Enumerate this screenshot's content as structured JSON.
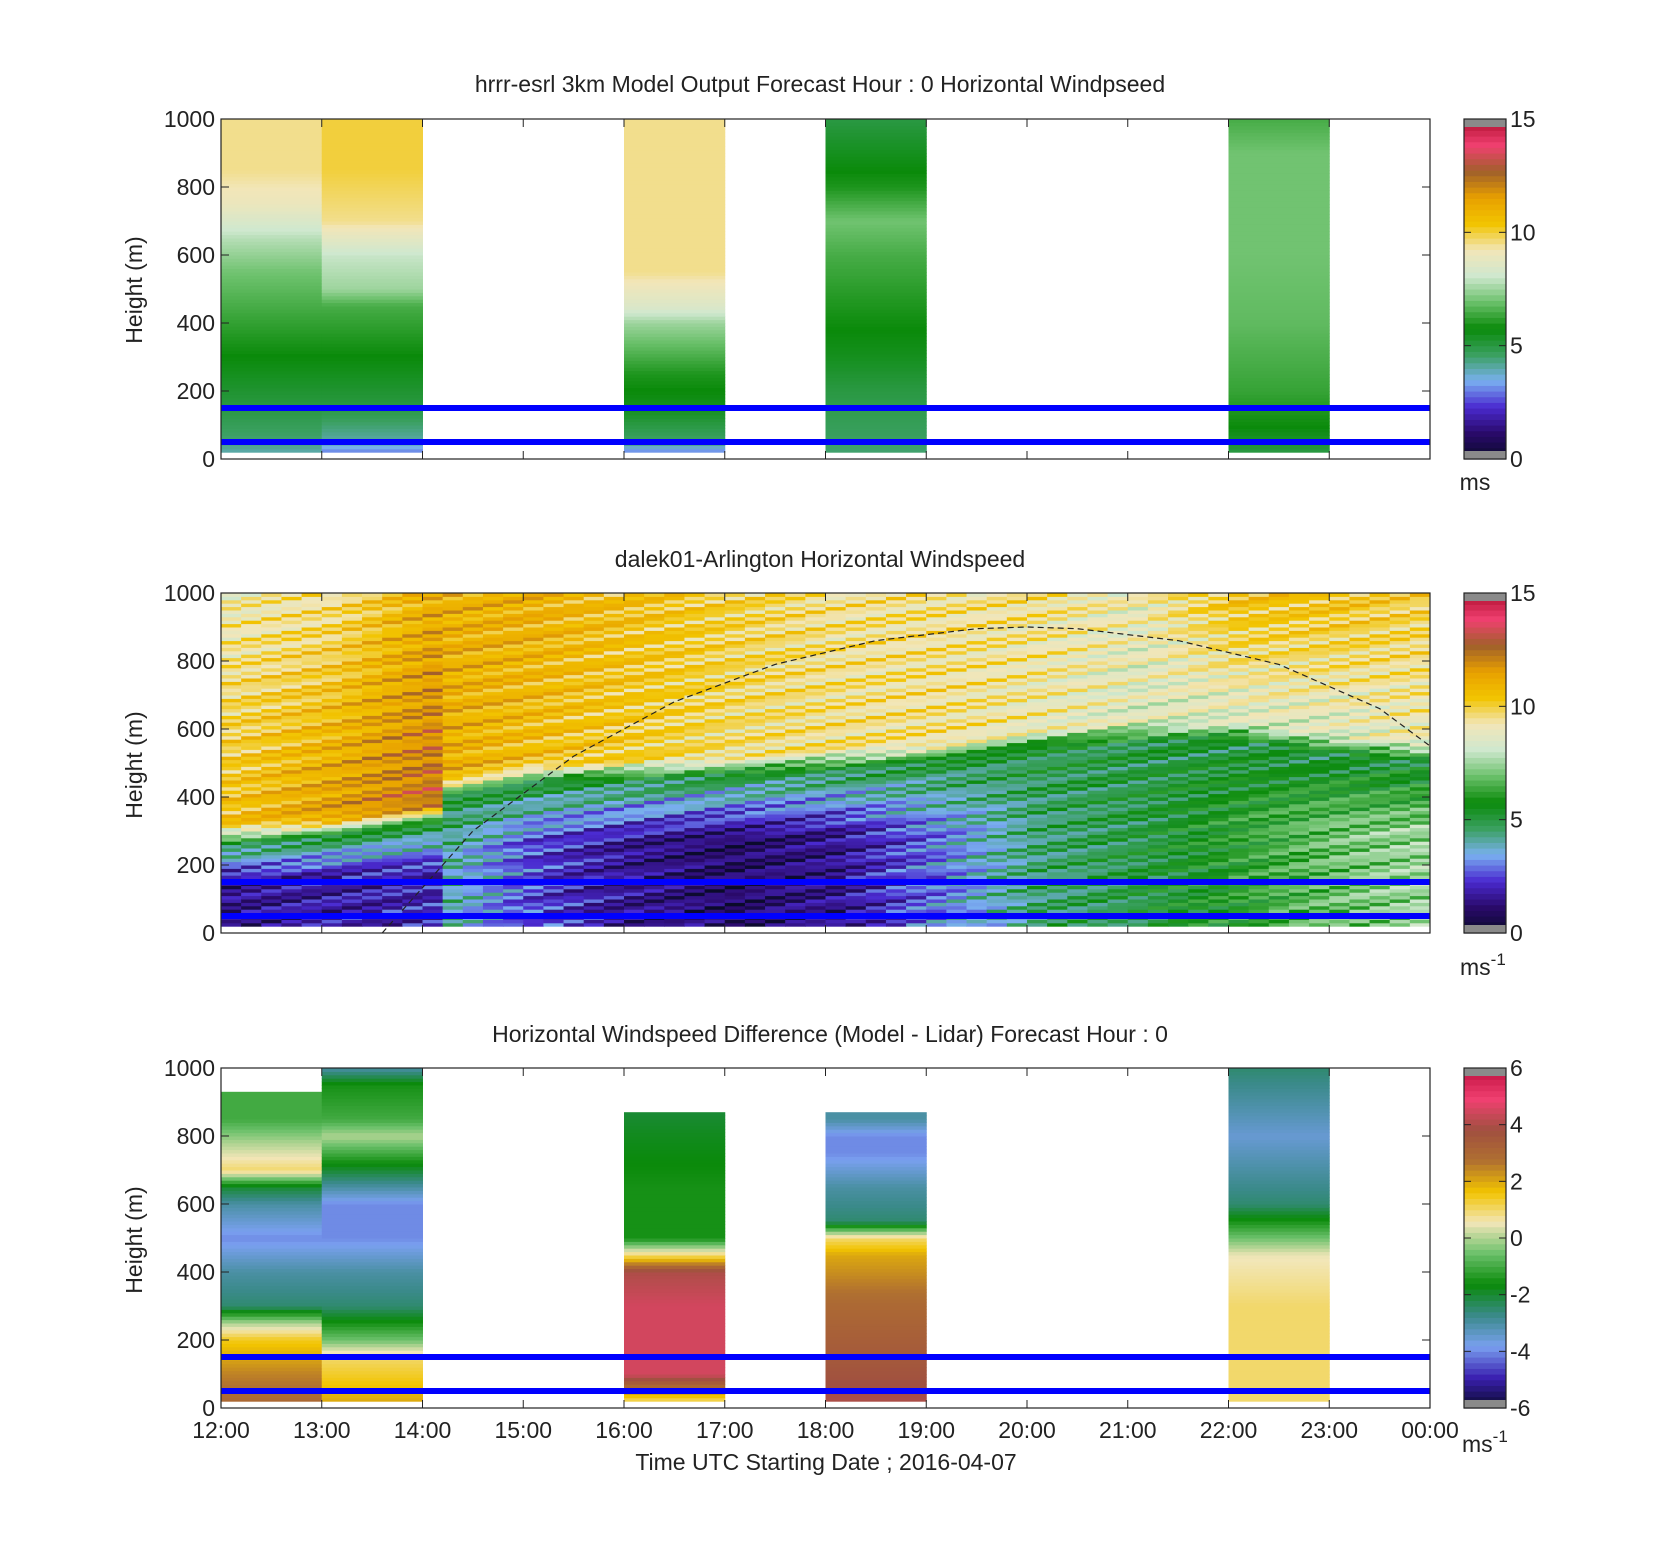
{
  "figure": {
    "xlabel": "Time UTC  Starting Date ; 2016-04-07",
    "time_ticks": [
      "12:00",
      "13:00",
      "14:00",
      "15:00",
      "16:00",
      "17:00",
      "18:00",
      "19:00",
      "20:00",
      "21:00",
      "22:00",
      "23:00",
      "00:00"
    ]
  },
  "reference_lines": {
    "heights_m": [
      150,
      50
    ],
    "color": "#0000ff"
  },
  "colors": {
    "windspeed_scale": [
      "#0a0a2a",
      "#2a0a6a",
      "#4a2ad0",
      "#7ab0f0",
      "#3aa060",
      "#0a8a0a",
      "#6ac06a",
      "#cfe8cf",
      "#f2e6b8",
      "#f2c400",
      "#e8a000",
      "#a0602a",
      "#f04070",
      "#b01030"
    ],
    "difference_scale": [
      "#0a0a2a",
      "#3a20b0",
      "#7aa0f0",
      "#3a8a8a",
      "#0a8a0a",
      "#6ac06a",
      "#f2e6b8",
      "#f2c400",
      "#b07030",
      "#a05040",
      "#f04070",
      "#c01040"
    ]
  },
  "chart_data": [
    {
      "type": "heatmap",
      "title": "hrrr-esrl 3km Model Output   Forecast Hour : 0 Horizontal Windpseed",
      "ylabel": "Height (m)",
      "ylim": [
        0,
        1000
      ],
      "yticks": [
        "0",
        "200",
        "400",
        "600",
        "800",
        "1000"
      ],
      "xlim_hours": [
        12,
        24
      ],
      "colorbar": {
        "min": 0,
        "max": 15,
        "ticks": [
          "0",
          "5",
          "10",
          "15"
        ],
        "unit": "ms"
      },
      "columns": [
        {
          "start_hour": 12,
          "end_hour": 13,
          "profile": [
            [
              0,
              1.5
            ],
            [
              20,
              4
            ],
            [
              60,
              4.5
            ],
            [
              150,
              5
            ],
            [
              250,
              5.5
            ],
            [
              350,
              6
            ],
            [
              450,
              6.5
            ],
            [
              550,
              7
            ],
            [
              650,
              7.8
            ],
            [
              750,
              9
            ],
            [
              850,
              9.5
            ],
            [
              1000,
              9.5
            ]
          ]
        },
        {
          "start_hour": 13,
          "end_hour": 14,
          "profile": [
            [
              0,
              1.5
            ],
            [
              20,
              3
            ],
            [
              50,
              4
            ],
            [
              150,
              5
            ],
            [
              250,
              5.5
            ],
            [
              350,
              6
            ],
            [
              450,
              6.5
            ],
            [
              500,
              7.5
            ],
            [
              600,
              8
            ],
            [
              700,
              9.5
            ],
            [
              850,
              10
            ],
            [
              1000,
              10
            ]
          ]
        },
        {
          "start_hour": 16,
          "end_hour": 17,
          "profile": [
            [
              0,
              1.5
            ],
            [
              20,
              3
            ],
            [
              50,
              4.5
            ],
            [
              150,
              5.5
            ],
            [
              250,
              6
            ],
            [
              350,
              7
            ],
            [
              400,
              7.5
            ],
            [
              450,
              8.5
            ],
            [
              550,
              9.5
            ],
            [
              1000,
              9.5
            ]
          ]
        },
        {
          "start_hour": 18,
          "end_hour": 19,
          "profile": [
            [
              0,
              1.5
            ],
            [
              20,
              4.5
            ],
            [
              200,
              5
            ],
            [
              300,
              5.5
            ],
            [
              450,
              6
            ],
            [
              600,
              6.5
            ],
            [
              700,
              7
            ],
            [
              800,
              6
            ],
            [
              900,
              5.5
            ],
            [
              1000,
              5
            ]
          ]
        },
        {
          "start_hour": 22,
          "end_hour": 23,
          "profile": [
            [
              0,
              1.5
            ],
            [
              20,
              5
            ],
            [
              100,
              5.8
            ],
            [
              200,
              6.3
            ],
            [
              400,
              6.8
            ],
            [
              600,
              7
            ],
            [
              900,
              7
            ],
            [
              1000,
              6.5
            ]
          ]
        }
      ]
    },
    {
      "type": "heatmap",
      "title": "dalek01-Arlington  Horizontal Windspeed",
      "ylabel": "Height (m)",
      "ylim": [
        0,
        1000
      ],
      "yticks": [
        "0",
        "200",
        "400",
        "600",
        "800",
        "1000"
      ],
      "xlim_hours": [
        12,
        24
      ],
      "colorbar": {
        "min": 0,
        "max": 15,
        "ticks": [
          "0",
          "5",
          "10",
          "15"
        ],
        "unit": "ms",
        "unit_superscript": "-1"
      },
      "data_end_hour": 23.9,
      "overlay_curve": {
        "style": "dashed",
        "points": [
          [
            13.6,
            0
          ],
          [
            14.5,
            300
          ],
          [
            15.5,
            520
          ],
          [
            16.5,
            680
          ],
          [
            17.5,
            790
          ],
          [
            18.5,
            860
          ],
          [
            19.5,
            895
          ],
          [
            20,
            900
          ],
          [
            20.5,
            895
          ],
          [
            21.5,
            860
          ],
          [
            22.5,
            790
          ],
          [
            23.5,
            660
          ],
          [
            24,
            550
          ]
        ]
      },
      "profiles": [
        {
          "hour": 12.0,
          "jet_top": 260,
          "low": 1.5,
          "mid": 10.5,
          "top": 9.0
        },
        {
          "hour": 13.0,
          "jet_top": 280,
          "low": 1.8,
          "mid": 11.5,
          "top": 9.5
        },
        {
          "hour": 14.0,
          "jet_top": 320,
          "low": 2.0,
          "mid": 12.5,
          "top": 11.0
        },
        {
          "hour": 14.2,
          "jet_top": 400,
          "low": 4.0,
          "mid": 11.0,
          "top": 11.0
        },
        {
          "hour": 15.0,
          "jet_top": 440,
          "low": 2.5,
          "mid": 10.5,
          "top": 11.0
        },
        {
          "hour": 16.0,
          "jet_top": 450,
          "low": 1.5,
          "mid": 10.0,
          "top": 10.5
        },
        {
          "hour": 17.0,
          "jet_top": 460,
          "low": 1.0,
          "mid": 9.5,
          "top": 10.0
        },
        {
          "hour": 18.0,
          "jet_top": 480,
          "low": 1.5,
          "mid": 9.5,
          "top": 9.5
        },
        {
          "hour": 19.0,
          "jet_top": 500,
          "low": 3.0,
          "mid": 9.5,
          "top": 9.5
        },
        {
          "hour": 20.0,
          "jet_top": 540,
          "low": 4.5,
          "mid": 9.0,
          "top": 9.5
        },
        {
          "hour": 21.0,
          "jet_top": 560,
          "low": 5.0,
          "mid": 8.5,
          "top": 9.0
        },
        {
          "hour": 22.0,
          "jet_top": 560,
          "low": 6.0,
          "mid": 8.5,
          "top": 10.5
        },
        {
          "hour": 23.0,
          "jet_top": 520,
          "low": 7.0,
          "mid": 8.5,
          "top": 10.5
        },
        {
          "hour": 23.9,
          "jet_top": 500,
          "low": 7.5,
          "mid": 9.0,
          "top": 10.0
        }
      ]
    },
    {
      "type": "heatmap",
      "title": "Horizontal Windspeed Difference (Model - Lidar) Forecast Hour : 0",
      "ylabel": "Height (m)",
      "ylim": [
        0,
        1000
      ],
      "yticks": [
        "0",
        "200",
        "400",
        "600",
        "800",
        "1000"
      ],
      "xlim_hours": [
        12,
        24
      ],
      "colorbar": {
        "min": -6,
        "max": 6,
        "ticks": [
          "-6",
          "-4",
          "-2",
          "0",
          "2",
          "4",
          "6"
        ],
        "unit": "ms",
        "unit_superscript": "-1"
      },
      "columns": [
        {
          "start_hour": 12,
          "end_hour": 13,
          "top_m": 930,
          "profile": [
            [
              20,
              3
            ],
            [
              100,
              2.5
            ],
            [
              200,
              1.5
            ],
            [
              250,
              0
            ],
            [
              300,
              -2.5
            ],
            [
              400,
              -3
            ],
            [
              500,
              -4
            ],
            [
              600,
              -3
            ],
            [
              650,
              -2
            ],
            [
              700,
              1
            ],
            [
              780,
              0
            ],
            [
              850,
              -1
            ],
            [
              930,
              -1
            ]
          ]
        },
        {
          "start_hour": 13,
          "end_hour": 14,
          "top_m": 1000,
          "profile": [
            [
              20,
              2
            ],
            [
              150,
              1
            ],
            [
              200,
              -0.5
            ],
            [
              300,
              -2.5
            ],
            [
              400,
              -3
            ],
            [
              500,
              -4
            ],
            [
              600,
              -4
            ],
            [
              650,
              -3
            ],
            [
              700,
              -2
            ],
            [
              750,
              -1
            ],
            [
              800,
              0
            ],
            [
              850,
              -1
            ],
            [
              950,
              -1.5
            ],
            [
              1000,
              -3
            ]
          ]
        },
        {
          "start_hour": 16,
          "end_hour": 17,
          "top_m": 870,
          "profile": [
            [
              20,
              1
            ],
            [
              100,
              4.5
            ],
            [
              300,
              4.5
            ],
            [
              400,
              4
            ],
            [
              450,
              1
            ],
            [
              500,
              -1.5
            ],
            [
              650,
              -1.5
            ],
            [
              800,
              -1.8
            ],
            [
              870,
              -2
            ]
          ]
        },
        {
          "start_hour": 18,
          "end_hour": 19,
          "top_m": 870,
          "profile": [
            [
              20,
              4
            ],
            [
              150,
              3.5
            ],
            [
              300,
              3
            ],
            [
              450,
              2
            ],
            [
              500,
              1
            ],
            [
              550,
              -2.5
            ],
            [
              650,
              -3
            ],
            [
              750,
              -4
            ],
            [
              800,
              -4
            ],
            [
              850,
              -3
            ]
          ]
        },
        {
          "start_hour": 22,
          "end_hour": 23,
          "top_m": 1000,
          "profile": [
            [
              20,
              1
            ],
            [
              300,
              1
            ],
            [
              450,
              0.5
            ],
            [
              500,
              -0.5
            ],
            [
              600,
              -2.5
            ],
            [
              700,
              -3
            ],
            [
              800,
              -3.5
            ],
            [
              900,
              -3
            ],
            [
              1000,
              -2.5
            ]
          ]
        }
      ]
    }
  ]
}
